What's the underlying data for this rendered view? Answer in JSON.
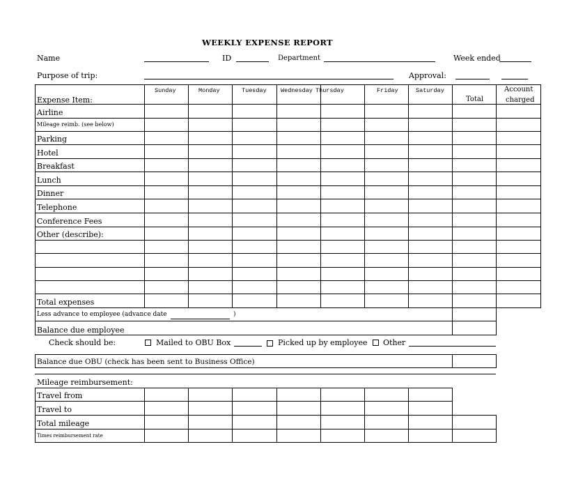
{
  "title": "WEEKLY EXPENSE REPORT",
  "header": {
    "name_label": "Name",
    "id_label": "ID",
    "department_label": "Department",
    "week_ended_label": "Week ended",
    "purpose_label": "Purpose of trip:",
    "approval_label": "Approval:"
  },
  "expense_table": {
    "item_header": "Expense Item:",
    "day_columns": [
      "Sunday",
      "Monday",
      "Tuesday",
      "Wednesday",
      "Thursday",
      "Friday",
      "Saturday"
    ],
    "total_header": "Total",
    "account_header_1": "Account",
    "account_header_2": "charged",
    "rows": [
      "Airline",
      "Mileage reimb. (see below)",
      "Parking",
      "Hotel",
      "Breakfast",
      "Lunch",
      "Dinner",
      "Telephone",
      "Conference Fees",
      "Other (describe):",
      "",
      "",
      "",
      "",
      "Total expenses"
    ]
  },
  "summary": {
    "less_advance": "Less advance to employee (advance date",
    "less_advance_close": ")",
    "balance_due_employee": "Balance due employee",
    "check_label": "Check should be:",
    "option_mailed": "Mailed to OBU Box",
    "option_picked": "Picked up by employee",
    "option_other": "Other",
    "balance_due_obu": "Balance due OBU  (check has been sent to Business Office)"
  },
  "mileage": {
    "title": "Mileage reimbursement:",
    "rows": [
      "Travel from",
      "Travel to",
      "Total mileage",
      "Times reimbursement rate"
    ]
  }
}
